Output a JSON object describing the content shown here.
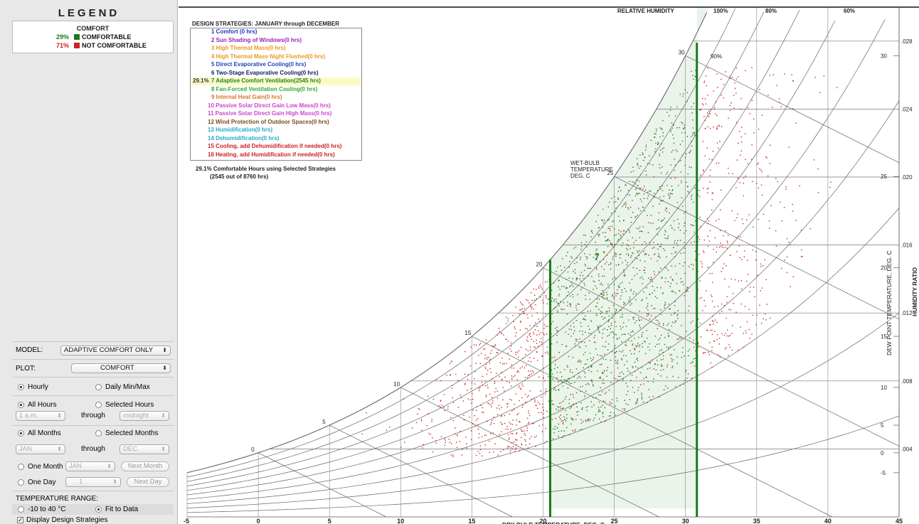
{
  "legend": {
    "title": "LEGEND",
    "heading": "COMFORT",
    "items": [
      {
        "pct": "29%",
        "label": "COMFORTABLE",
        "color": "#1a7a1a"
      },
      {
        "pct": "71%",
        "label": "NOT COMFORTABLE",
        "color": "#cc2222"
      }
    ]
  },
  "controls": {
    "model_label": "MODEL:",
    "model_value": "ADAPTIVE COMFORT ONLY",
    "plot_label": "PLOT:",
    "plot_value": "COMFORT",
    "hourly": "Hourly",
    "daily": "Daily Min/Max",
    "all_hours": "All Hours",
    "selected_hours": "Selected Hours",
    "hour_from": "1 a.m.",
    "through": "through",
    "hour_to": "midnight",
    "all_months": "All Months",
    "selected_months": "Selected Months",
    "month_from": "JAN",
    "month_to": "DEC",
    "one_month": "One Month",
    "one_month_value": "JAN",
    "next_month": "Next Month",
    "one_day": "One Day",
    "one_day_value": "1",
    "next_day": "Next Day",
    "temp_range_label": "TEMPERATURE RANGE:",
    "range_option": "-10 to 40 °C",
    "fit_option": "Fit to Data",
    "display_strategies": "Display Design Strategies"
  },
  "chart": {
    "strategies_title": "DESIGN STRATEGIES:  JANUARY through DECEMBER",
    "strategies": [
      {
        "label": "1 Comfort (0 hrs)",
        "color": "#2233cc",
        "pct": ""
      },
      {
        "label": "2 Sun Shading of Windows(0 hrs)",
        "color": "#9922bb",
        "pct": ""
      },
      {
        "label": "3 High Thermal Mass(0 hrs)",
        "color": "#e89a22",
        "pct": ""
      },
      {
        "label": "4 High Thermal Mass Night Flushed(0 hrs)",
        "color": "#e89a22",
        "pct": ""
      },
      {
        "label": "5 Direct Evaporative Cooling(0 hrs)",
        "color": "#2244bb",
        "pct": ""
      },
      {
        "label": "6 Two-Stage Evaporative Cooling(0 hrs)",
        "color": "#112266",
        "pct": ""
      },
      {
        "label": "7 Adaptive Comfort Ventilation(2545 hrs)",
        "color": "#228822",
        "pct": "29.1%"
      },
      {
        "label": "8 Fan-Forced Ventilation Cooling(0 hrs)",
        "color": "#33aa33",
        "pct": ""
      },
      {
        "label": "9 Internal Heat Gain(0 hrs)",
        "color": "#d8762a",
        "pct": ""
      },
      {
        "label": "10 Passive Solar Direct Gain Low Mass(0 hrs)",
        "color": "#cc44cc",
        "pct": ""
      },
      {
        "label": "11 Passive Solar Direct Gain High Mass(0 hrs)",
        "color": "#cc44cc",
        "pct": ""
      },
      {
        "label": "12 Wind Protection of Outdoor Spaces(0 hrs)",
        "color": "#7a4a1a",
        "pct": ""
      },
      {
        "label": "13 Humidification(0 hrs)",
        "color": "#22aacc",
        "pct": ""
      },
      {
        "label": "14 Dehumidification(0 hrs)",
        "color": "#22aacc",
        "pct": ""
      },
      {
        "label": "15 Cooling, add Dehumidification if needed(0 hrs)",
        "color": "#cc2222",
        "pct": ""
      },
      {
        "label": "16 Heating, add Humidification if needed(0 hrs)",
        "color": "#cc2222",
        "pct": ""
      }
    ],
    "summary_line1": "29.1%  Comfortable Hours using Selected Strategies",
    "summary_line2": "(2545 out of 8760 hrs)",
    "rh_label": "RELATIVE HUMIDITY",
    "rh_ticks": [
      "100%",
      "80%",
      "60%"
    ],
    "rh_90": "90%",
    "wetbulb_label": [
      "WET-BULB",
      "TEMPERATURE",
      "DEG. C"
    ],
    "zone_label": "7",
    "dew_axis_label": "DEW POINT TEMPERATURE, DEG. C",
    "hr_axis_label": "HUMIDITY RATIO",
    "x_axis_label": "DRY BULB TEMPERATURE, DEG. C"
  },
  "chart_data": {
    "type": "scatter",
    "title": "DESIGN STRATEGIES:  JANUARY through DECEMBER",
    "xlabel": "DRY BULB TEMPERATURE, DEG. C",
    "ylabel": "HUMIDITY RATIO",
    "xlim": [
      -5,
      45
    ],
    "x_ticks": [
      -5,
      0,
      5,
      10,
      15,
      20,
      25,
      30,
      35,
      40,
      45
    ],
    "humidity_ratio_ticks": [
      ".004",
      ".008",
      ".012",
      ".016",
      ".020",
      ".024",
      ".028"
    ],
    "dew_point_ticks": [
      -5,
      0,
      5,
      10,
      15,
      20,
      25,
      30
    ],
    "wet_bulb_ticks": [
      0,
      5,
      10,
      15,
      20,
      25,
      30
    ],
    "relative_humidity_ticks": [
      "100%",
      "90%",
      "80%",
      "60%"
    ],
    "comfort_zone": {
      "strategy": 7,
      "dry_bulb_min": 20.5,
      "dry_bulb_max": 30.8
    },
    "series": [
      {
        "name": "COMFORTABLE",
        "color": "#1a7a1a",
        "share": 0.29
      },
      {
        "name": "NOT COMFORTABLE",
        "color": "#cc2222",
        "share": 0.71
      }
    ]
  }
}
